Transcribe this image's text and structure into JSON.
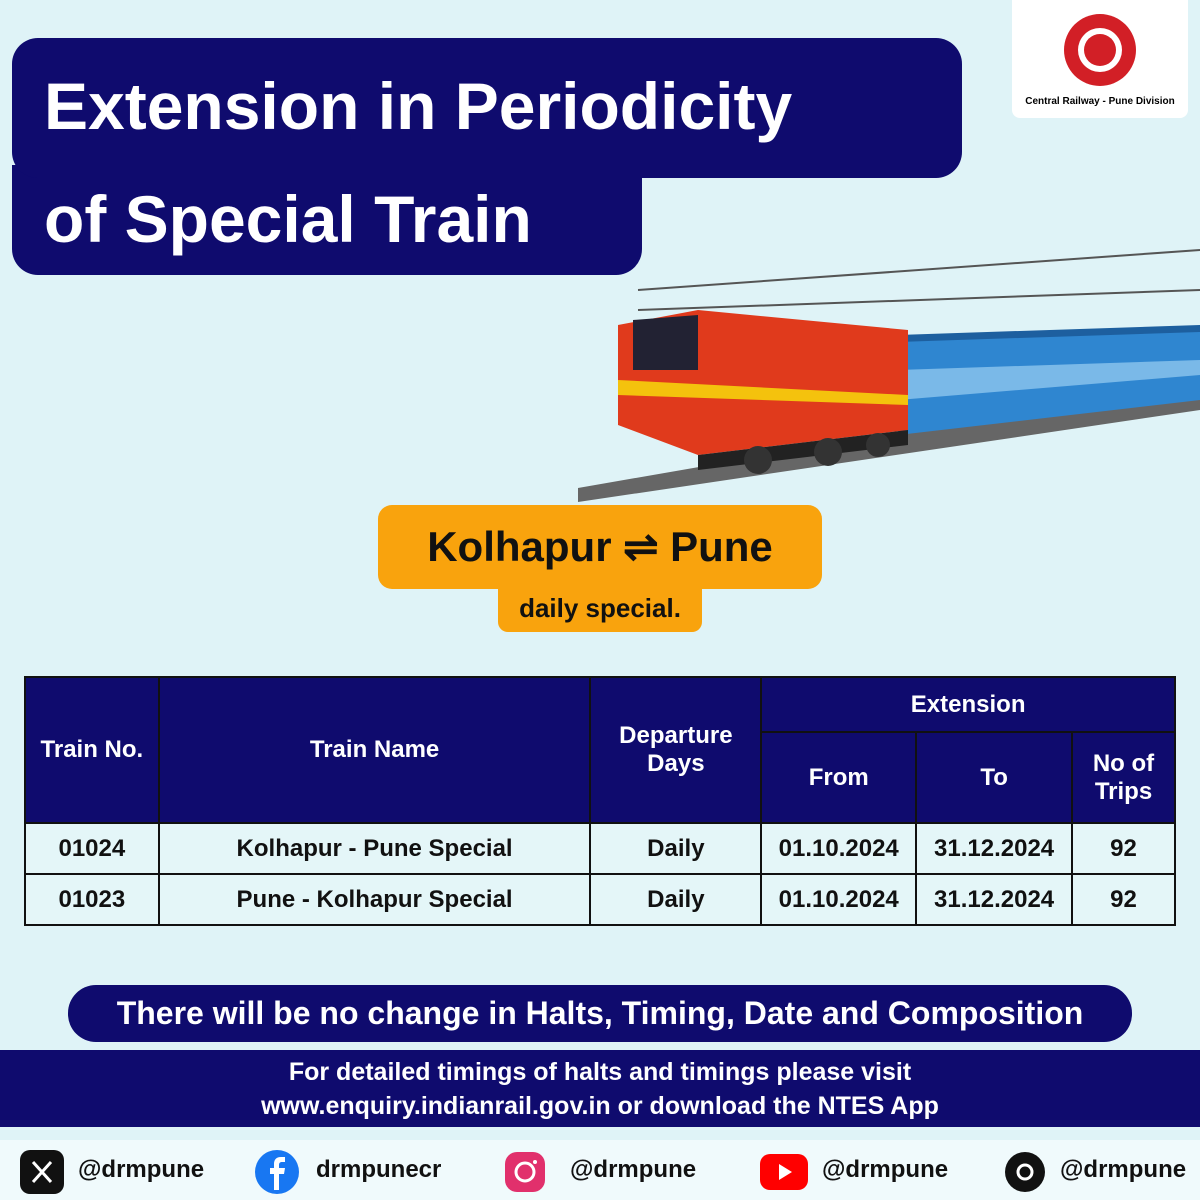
{
  "logo": {
    "caption": "Central Railway - Pune Division"
  },
  "header": {
    "title_lines": [
      "Extension in Periodicity",
      "of Special Train"
    ]
  },
  "route": {
    "name": "Kolhapur ⇌ Pune",
    "subtitle": "daily special."
  },
  "table": {
    "header": {
      "train_no": "Train No.",
      "train_name": "Train Name",
      "departure_days": "Departure Days",
      "extension": "Extension",
      "from": "From",
      "to": "To",
      "trips": "No of Trips"
    },
    "rows": [
      [
        "01024",
        "Kolhapur - Pune Special",
        "Daily",
        "01.10.2024",
        "31.12.2024",
        "92"
      ],
      [
        "01023",
        "Pune - Kolhapur Special",
        "Daily",
        "01.10.2024",
        "31.12.2024",
        "92"
      ]
    ]
  },
  "notice": "There will be no change in Halts, Timing, Date and Composition",
  "footer": {
    "lines": [
      "For  detailed timings of halts and timings please visit",
      "www.enquiry.indianrail.gov.in or download the NTES App"
    ]
  },
  "social": [
    "@drmpune",
    "drmpunecr",
    "@drmpune",
    "@drmpune",
    "@drmpune"
  ]
}
